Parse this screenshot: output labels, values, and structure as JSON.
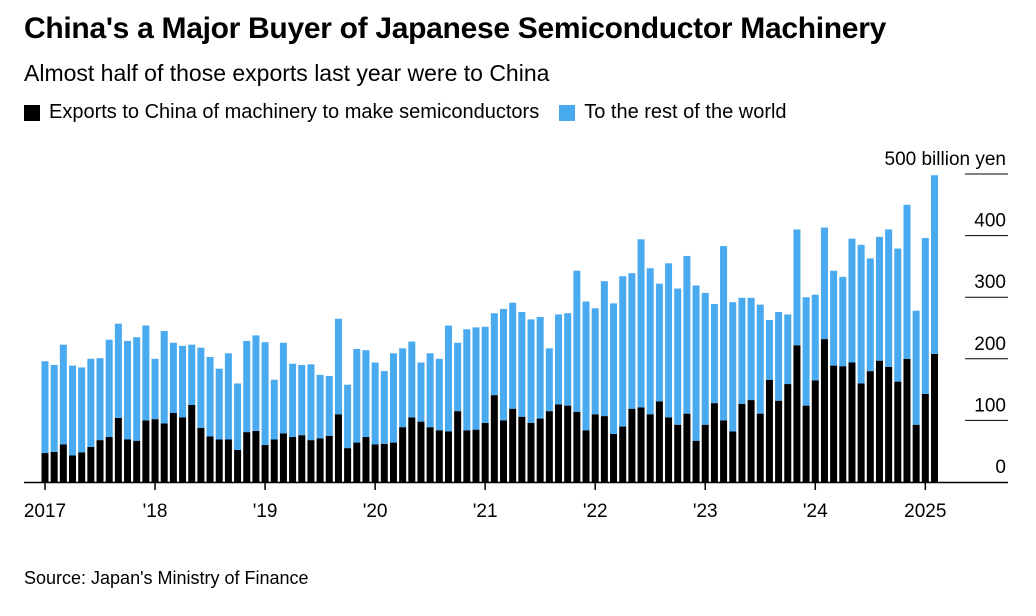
{
  "title": "China's a Major Buyer of Japanese Semiconductor Machinery",
  "subtitle": "Almost half of those exports last year were to China",
  "legend": [
    {
      "label": "Exports to China of machinery to make semiconductors",
      "color": "#000000"
    },
    {
      "label": "To the rest of the world",
      "color": "#4aaaf0"
    }
  ],
  "source": "Source: Japan's Ministry of Finance",
  "chart_data": {
    "type": "bar",
    "stacked": true,
    "unit": "500 billion yen",
    "ylim": [
      0,
      500
    ],
    "yticks": [
      0,
      100,
      200,
      300,
      400,
      500
    ],
    "ytick_labels": [
      "0",
      "100",
      "200",
      "300",
      "400",
      "500 billion yen"
    ],
    "xtick_labels": [
      "2017",
      "'18",
      "'19",
      "'20",
      "'21",
      "'22",
      "'23",
      "'24",
      "2025"
    ],
    "xtick_month_index": [
      0,
      12,
      24,
      36,
      48,
      60,
      72,
      84,
      96
    ],
    "start": "2017-01",
    "frequency": "monthly",
    "series": [
      {
        "name": "Exports to China of machinery to make semiconductors",
        "color": "#000000",
        "values": [
          47,
          49,
          61,
          43,
          48,
          57,
          68,
          73,
          104,
          69,
          67,
          100,
          102,
          95,
          112,
          105,
          125,
          88,
          74,
          69,
          69,
          52,
          81,
          83,
          60,
          69,
          79,
          73,
          76,
          68,
          71,
          75,
          110,
          55,
          64,
          73,
          61,
          62,
          64,
          89,
          105,
          98,
          89,
          84,
          82,
          115,
          84,
          85,
          96,
          141,
          100,
          119,
          106,
          96,
          103,
          115,
          126,
          124,
          114,
          84,
          110,
          107,
          78,
          90,
          119,
          121,
          110,
          131,
          105,
          93,
          111,
          67,
          93,
          128,
          100,
          82,
          127,
          133,
          111,
          166,
          132,
          159,
          222,
          124,
          165,
          232,
          189,
          188,
          194,
          160,
          180,
          197,
          187,
          163,
          200,
          93,
          143,
          208
        ]
      },
      {
        "name": "To the rest of the world",
        "color": "#4aaaf0",
        "values": [
          149,
          141,
          162,
          146,
          138,
          143,
          133,
          158,
          153,
          160,
          168,
          154,
          98,
          150,
          114,
          116,
          98,
          130,
          129,
          115,
          140,
          108,
          148,
          155,
          167,
          97,
          147,
          119,
          114,
          123,
          103,
          97,
          155,
          103,
          152,
          141,
          133,
          118,
          145,
          128,
          123,
          96,
          120,
          116,
          172,
          111,
          164,
          166,
          156,
          133,
          181,
          172,
          170,
          168,
          165,
          102,
          146,
          150,
          229,
          209,
          172,
          219,
          212,
          244,
          220,
          273,
          237,
          191,
          250,
          221,
          256,
          252,
          214,
          161,
          283,
          210,
          172,
          166,
          177,
          97,
          144,
          113,
          188,
          176,
          139,
          181,
          154,
          145,
          201,
          225,
          183,
          201,
          223,
          216,
          250,
          185,
          253,
          290
        ]
      }
    ]
  }
}
